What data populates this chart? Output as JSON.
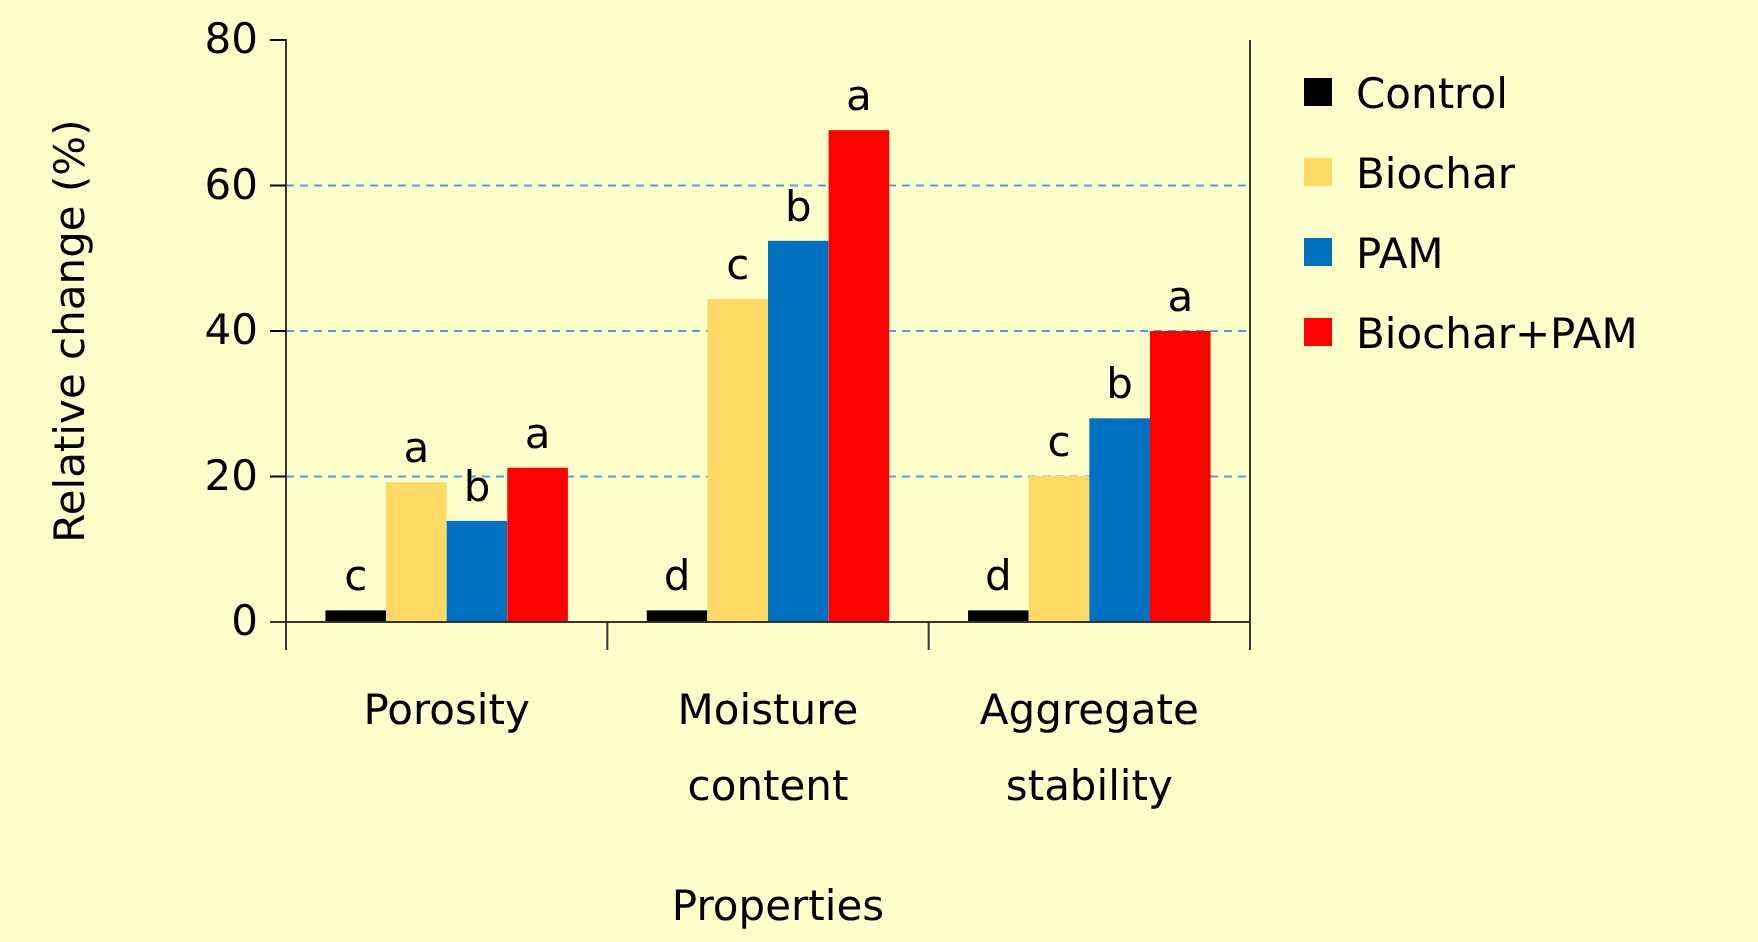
{
  "chart_data": {
    "type": "bar",
    "xlabel": "Properties",
    "ylabel": "Relative change (%)",
    "categories": [
      "Porosity",
      "Moisture content",
      "Aggregate stability"
    ],
    "series": [
      {
        "name": "Control",
        "color": "#000000",
        "values": [
          1.6,
          1.6,
          1.6
        ],
        "value_labels": [
          "c",
          "d",
          "d"
        ]
      },
      {
        "name": "Biochar",
        "color": "#ffd966",
        "values": [
          19.2,
          44.4,
          20.1
        ],
        "value_labels": [
          "a",
          "c",
          "c"
        ]
      },
      {
        "name": "PAM",
        "color": "#0070c0",
        "values": [
          13.9,
          52.4,
          28
        ],
        "value_labels": [
          "b",
          "b",
          "b"
        ]
      },
      {
        "name": "Biochar+PAM",
        "color": "#ff0000",
        "values": [
          21.2,
          67.6,
          40
        ],
        "value_labels": [
          "a",
          "a",
          "a"
        ]
      }
    ],
    "ylim": [
      0,
      80
    ],
    "yticks": [
      0,
      20,
      40,
      60,
      80
    ],
    "grid": "y",
    "legend": "right"
  }
}
